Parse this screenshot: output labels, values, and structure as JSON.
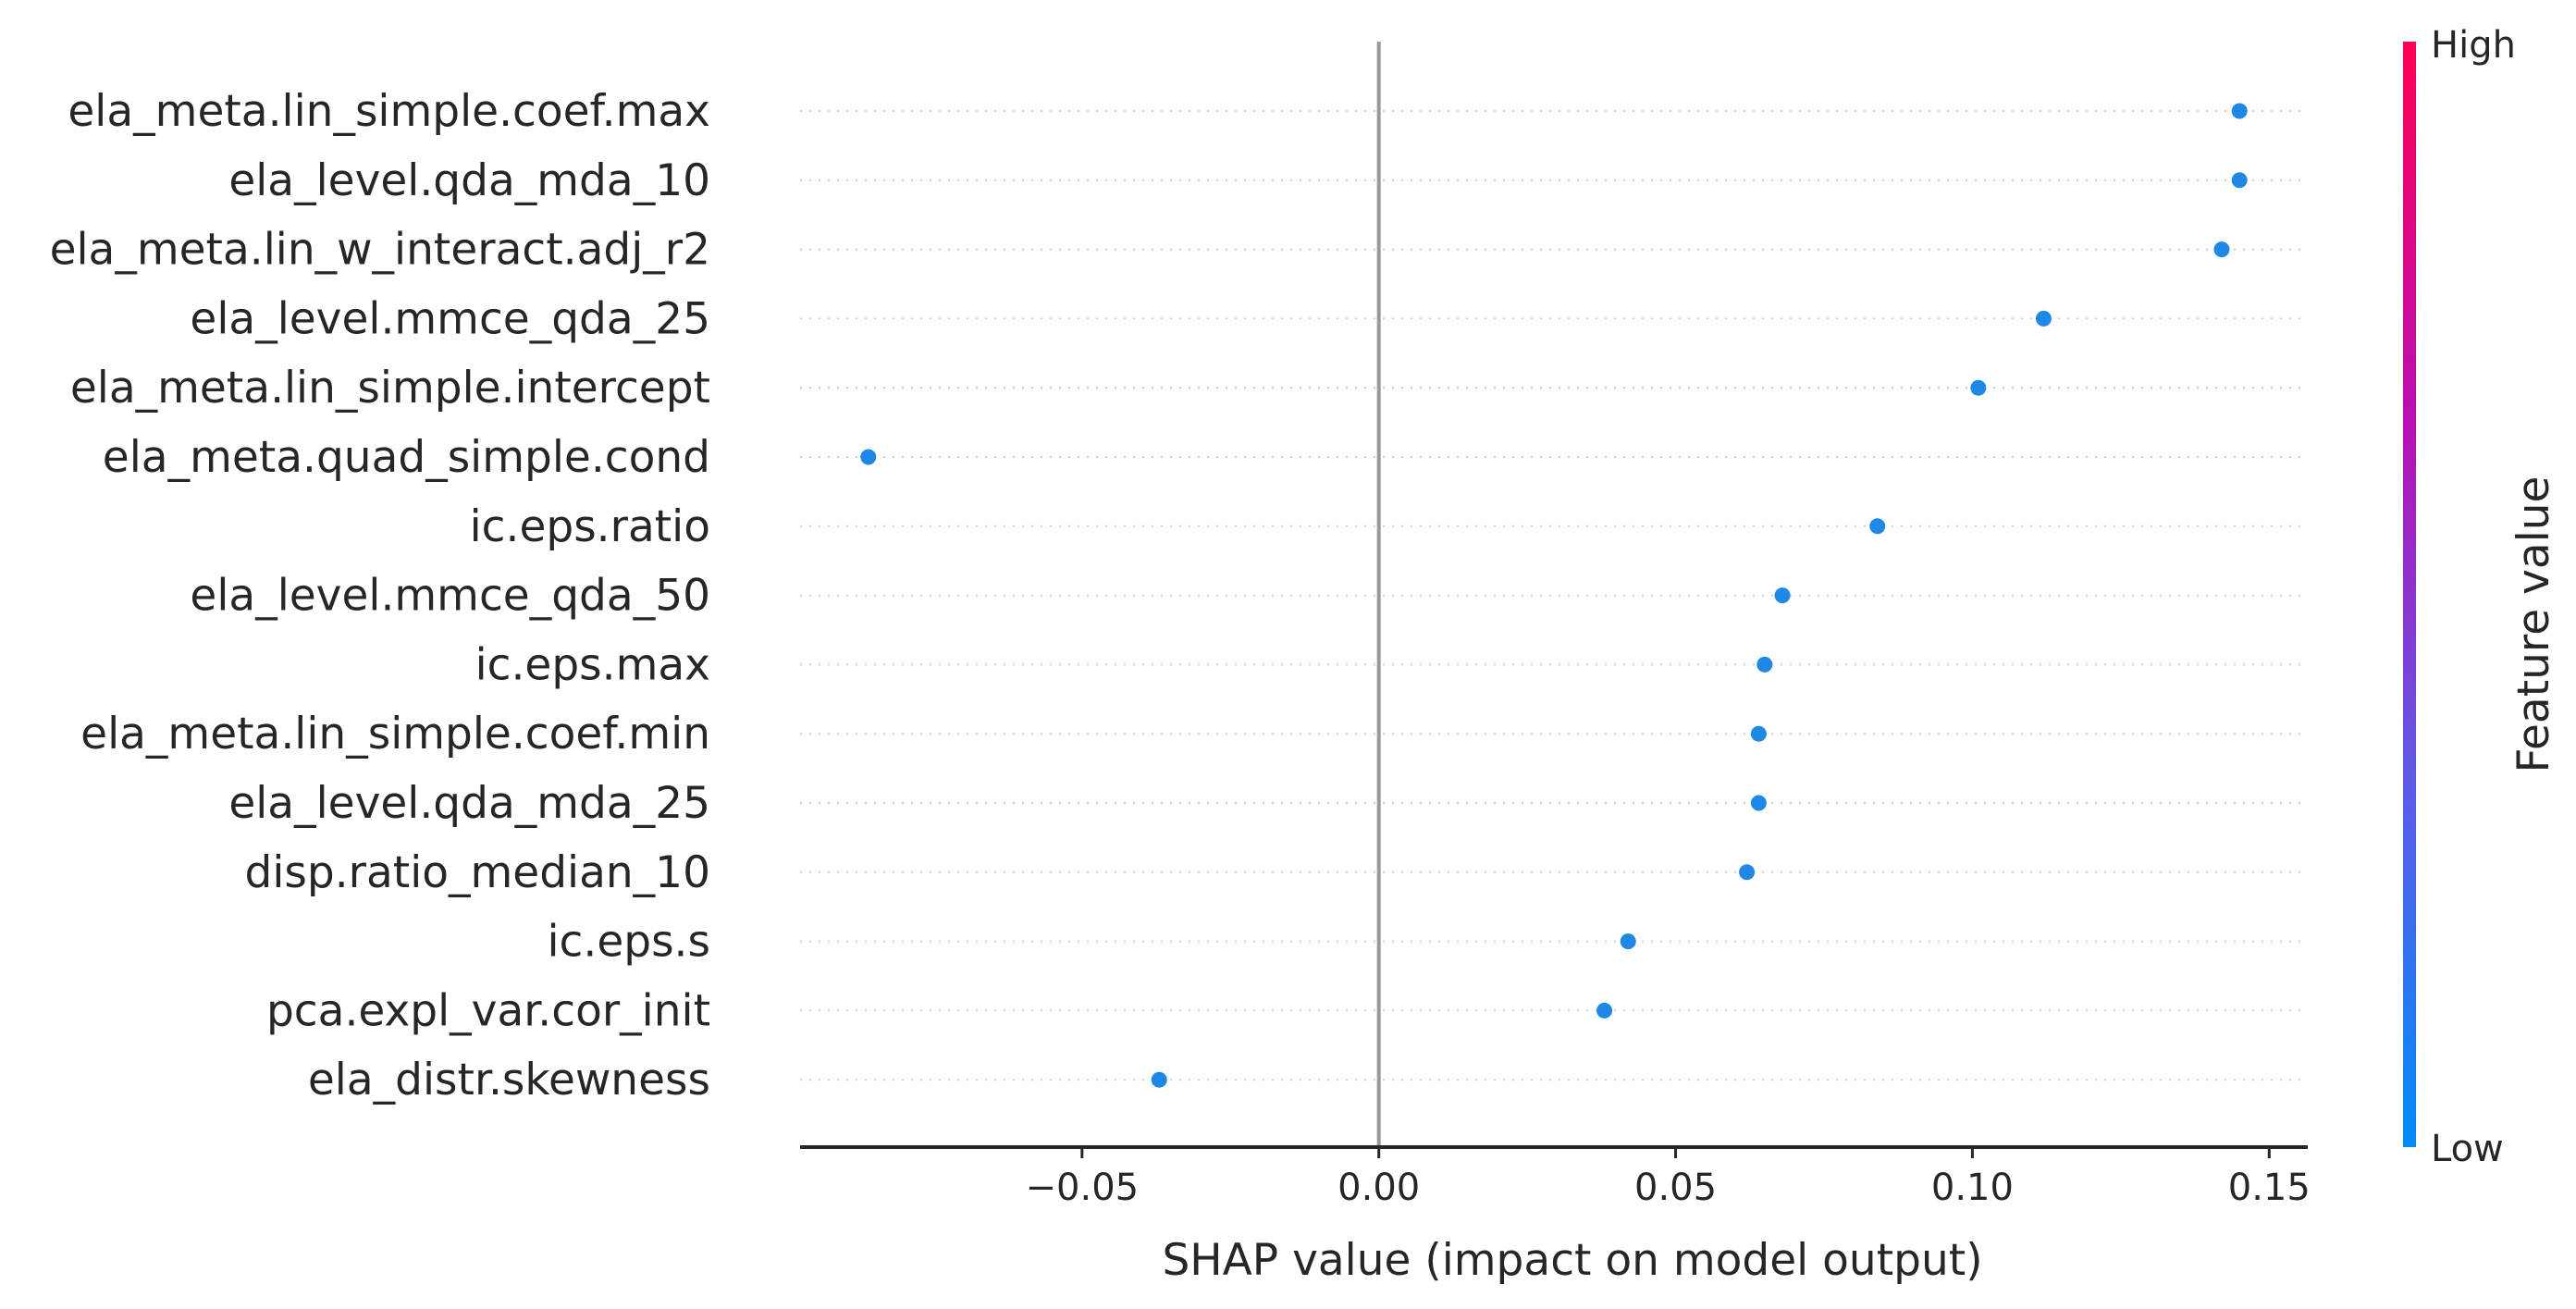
{
  "chart_data": {
    "type": "scatter",
    "title": "",
    "xlabel": "SHAP value (impact on model output)",
    "ylabel": "",
    "xlim": [
      -0.0975,
      0.1565
    ],
    "x_ticks": [
      -0.05,
      0.0,
      0.05,
      0.1,
      0.15
    ],
    "x_tick_labels": [
      "−0.05",
      "0.00",
      "0.05",
      "0.10",
      "0.15"
    ],
    "zero_line": 0.0,
    "grid": "dotted horizontal guide per feature row",
    "features": [
      {
        "name": "ela_meta.lin_simple.coef.max",
        "value": 0.145
      },
      {
        "name": "ela_level.qda_mda_10",
        "value": 0.145
      },
      {
        "name": "ela_meta.lin_w_interact.adj_r2",
        "value": 0.142
      },
      {
        "name": "ela_level.mmce_qda_25",
        "value": 0.112
      },
      {
        "name": "ela_meta.lin_simple.intercept",
        "value": 0.101
      },
      {
        "name": "ela_meta.quad_simple.cond",
        "value": -0.086
      },
      {
        "name": "ic.eps.ratio",
        "value": 0.084
      },
      {
        "name": "ela_level.mmce_qda_50",
        "value": 0.068
      },
      {
        "name": "ic.eps.max",
        "value": 0.065
      },
      {
        "name": "ela_meta.lin_simple.coef.min",
        "value": 0.064
      },
      {
        "name": "ela_level.qda_mda_25",
        "value": 0.064
      },
      {
        "name": "disp.ratio_median_10",
        "value": 0.062
      },
      {
        "name": "ic.eps.s",
        "value": 0.042
      },
      {
        "name": "pca.expl_var.cor_init",
        "value": 0.038
      },
      {
        "name": "ela_distr.skewness",
        "value": -0.037
      }
    ],
    "point_color": "#1E88E5",
    "colorbar": {
      "title": "Feature value",
      "high_label": "High",
      "low_label": "Low",
      "colors": [
        "#008BFB",
        "#5E5BE8",
        "#B90FB4",
        "#FF0052"
      ]
    }
  }
}
